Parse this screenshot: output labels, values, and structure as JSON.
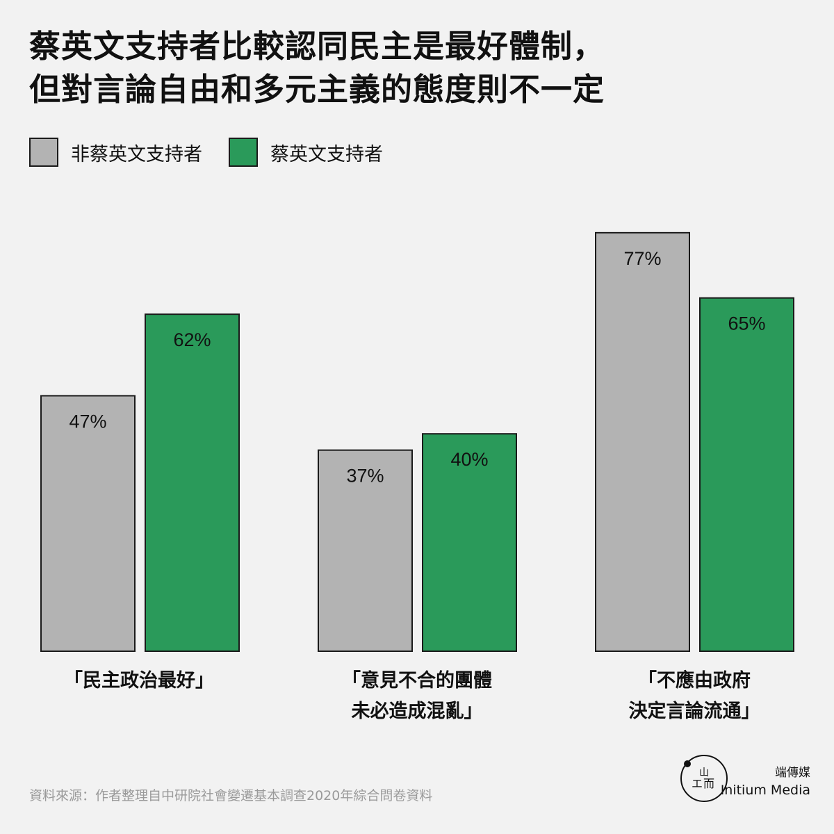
{
  "title": {
    "line1": "蔡英文支持者比較認同民主是最好體制，",
    "line2": "但對言論自由和多元主義的態度則不一定"
  },
  "legend": [
    {
      "label": "非蔡英文支持者",
      "color": "#b3b3b3"
    },
    {
      "label": "蔡英文支持者",
      "color": "#2a9a5a"
    }
  ],
  "chart_data": {
    "type": "bar",
    "categories": [
      [
        "「民主政治最好」"
      ],
      [
        "「意見不合的團體",
        "未必造成混亂」"
      ],
      [
        "「不應由政府",
        "決定言論流通」"
      ]
    ],
    "series": [
      {
        "name": "非蔡英文支持者",
        "values": [
          47,
          37,
          77
        ],
        "color": "#b3b3b3"
      },
      {
        "name": "蔡英文支持者",
        "values": [
          62,
          40,
          65
        ],
        "color": "#2a9a5a"
      }
    ],
    "value_suffix": "%",
    "ylim": [
      0,
      100
    ],
    "grid": false,
    "legend_position": "top-left"
  },
  "source": "資料來源：作者整理自中研院社會變遷基本調查2020年綜合問卷資料",
  "brand": {
    "zh": "端傳媒",
    "en": "Initium Media",
    "logo_text": "ㄓ 山 而"
  }
}
